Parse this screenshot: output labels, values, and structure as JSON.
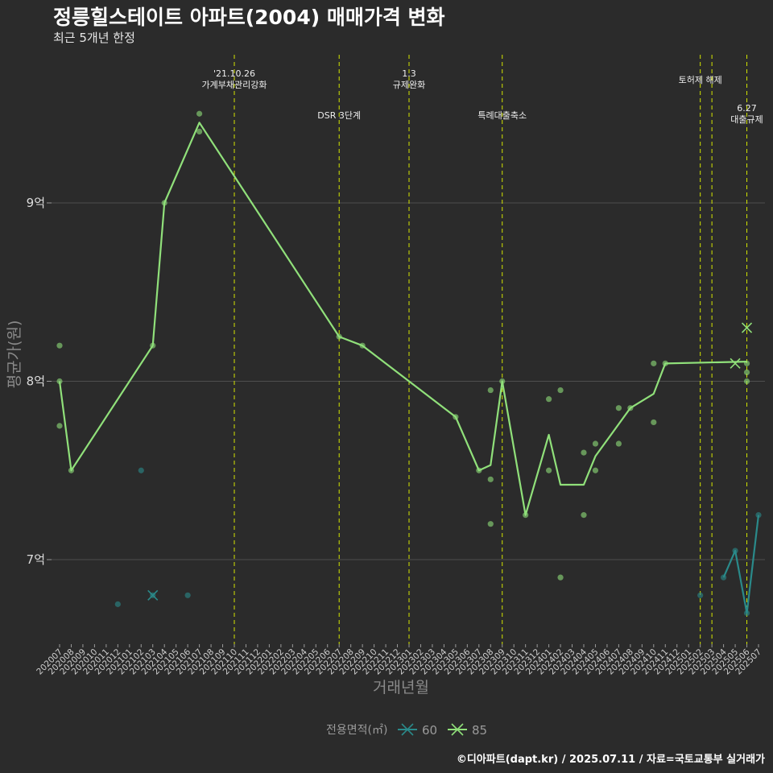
{
  "chart_data": {
    "type": "line",
    "title": "정릉힐스테이트 아파트(2004) 매매가격 변화",
    "subtitle": "최근 5개년 한정",
    "xlabel": "거래년월",
    "ylabel": "평균가(원)",
    "yticks": [
      {
        "value": 7,
        "label": "7억"
      },
      {
        "value": 8,
        "label": "8억"
      },
      {
        "value": 9,
        "label": "9억"
      }
    ],
    "ylim": [
      6.6,
      9.8
    ],
    "categories": [
      "202007",
      "202008",
      "202009",
      "202010",
      "202011",
      "202012",
      "202101",
      "202102",
      "202103",
      "202104",
      "202105",
      "202106",
      "202107",
      "202108",
      "202109",
      "202110",
      "202111",
      "202112",
      "202201",
      "202202",
      "202203",
      "202204",
      "202205",
      "202206",
      "202207",
      "202208",
      "202209",
      "202210",
      "202211",
      "202212",
      "202301",
      "202302",
      "202303",
      "202304",
      "202305",
      "202306",
      "202307",
      "202308",
      "202309",
      "202310",
      "202311",
      "202312",
      "202401",
      "202402",
      "202403",
      "202404",
      "202405",
      "202406",
      "202407",
      "202408",
      "202409",
      "202410",
      "202411",
      "202412",
      "202501",
      "202502",
      "202503",
      "202504",
      "202505",
      "202506",
      "202507"
    ],
    "legend": {
      "title": "전용면적(㎡)",
      "items": [
        {
          "name": "60",
          "color": "#2a8a8a"
        },
        {
          "name": "85",
          "color": "#90e07a"
        }
      ]
    },
    "series": [
      {
        "name": "60",
        "color": "#2a8a8a",
        "line": [
          [
            "202504",
            6.9
          ],
          [
            "202505",
            7.05
          ],
          [
            "202506",
            6.7
          ],
          [
            "202507",
            7.25
          ]
        ],
        "points": [
          [
            "202012",
            6.75
          ],
          [
            "202102",
            7.5
          ],
          [
            "202103",
            6.8
          ],
          [
            "202106",
            6.8
          ],
          [
            "202502",
            6.8
          ],
          [
            "202504",
            6.9
          ],
          [
            "202505",
            7.05
          ],
          [
            "202506",
            6.7
          ],
          [
            "202507",
            7.25
          ]
        ],
        "markers": [
          [
            "202103",
            6.8
          ]
        ]
      },
      {
        "name": "85",
        "color": "#90e07a",
        "line": [
          [
            "202007",
            8.0
          ],
          [
            "202008",
            7.5
          ],
          [
            "202103",
            8.2
          ],
          [
            "202104",
            9.0
          ],
          [
            "202107",
            9.45
          ],
          [
            "202207",
            8.25
          ],
          [
            "202209",
            8.2
          ],
          [
            "202305",
            7.8
          ],
          [
            "202307",
            7.5
          ],
          [
            "202308",
            7.53
          ],
          [
            "202309",
            8.0
          ],
          [
            "202311",
            7.25
          ],
          [
            "202401",
            7.7
          ],
          [
            "202402",
            7.42
          ],
          [
            "202404",
            7.42
          ],
          [
            "202405",
            7.58
          ],
          [
            "202408",
            7.85
          ],
          [
            "202410",
            7.93
          ],
          [
            "202411",
            8.1
          ],
          [
            "202506",
            8.11
          ]
        ],
        "points": [
          [
            "202007",
            8.2
          ],
          [
            "202007",
            8.0
          ],
          [
            "202007",
            7.75
          ],
          [
            "202008",
            7.5
          ],
          [
            "202103",
            8.2
          ],
          [
            "202104",
            9.0
          ],
          [
            "202107",
            9.5
          ],
          [
            "202107",
            9.4
          ],
          [
            "202207",
            8.25
          ],
          [
            "202209",
            8.2
          ],
          [
            "202305",
            7.8
          ],
          [
            "202307",
            7.5
          ],
          [
            "202308",
            7.95
          ],
          [
            "202308",
            7.45
          ],
          [
            "202308",
            7.2
          ],
          [
            "202309",
            8.0
          ],
          [
            "202311",
            7.25
          ],
          [
            "202401",
            7.9
          ],
          [
            "202401",
            7.5
          ],
          [
            "202402",
            7.95
          ],
          [
            "202402",
            6.9
          ],
          [
            "202404",
            7.6
          ],
          [
            "202404",
            7.25
          ],
          [
            "202405",
            7.65
          ],
          [
            "202405",
            7.5
          ],
          [
            "202407",
            7.85
          ],
          [
            "202407",
            7.65
          ],
          [
            "202408",
            7.85
          ],
          [
            "202410",
            8.1
          ],
          [
            "202410",
            7.77
          ],
          [
            "202411",
            8.1
          ],
          [
            "202506",
            8.1
          ],
          [
            "202506",
            8.05
          ],
          [
            "202506",
            8.0
          ]
        ],
        "markers": [
          [
            "202505",
            8.1
          ],
          [
            "202506",
            8.3
          ]
        ]
      }
    ],
    "events": [
      {
        "month": "202110",
        "label": [
          "'21.10.26",
          "가계부채관리강화"
        ],
        "row": "top"
      },
      {
        "month": "202207",
        "label": [
          "DSR 3단계"
        ],
        "row": "mid"
      },
      {
        "month": "202301",
        "label": [
          "1.3",
          "규제완화"
        ],
        "row": "top"
      },
      {
        "month": "202309",
        "label": [
          "특례대출축소"
        ],
        "row": "mid"
      },
      {
        "month": "202502",
        "label": [
          "토허제 해제"
        ],
        "row": "top2"
      },
      {
        "month": "202503",
        "label": [],
        "row": "none"
      },
      {
        "month": "202506",
        "label": [
          "6.27",
          "대출규제"
        ],
        "row": "low"
      }
    ],
    "caption": "©디아파트(dapt.kr) / 2025.07.11 / 자료=국토교통부 실거래가"
  }
}
